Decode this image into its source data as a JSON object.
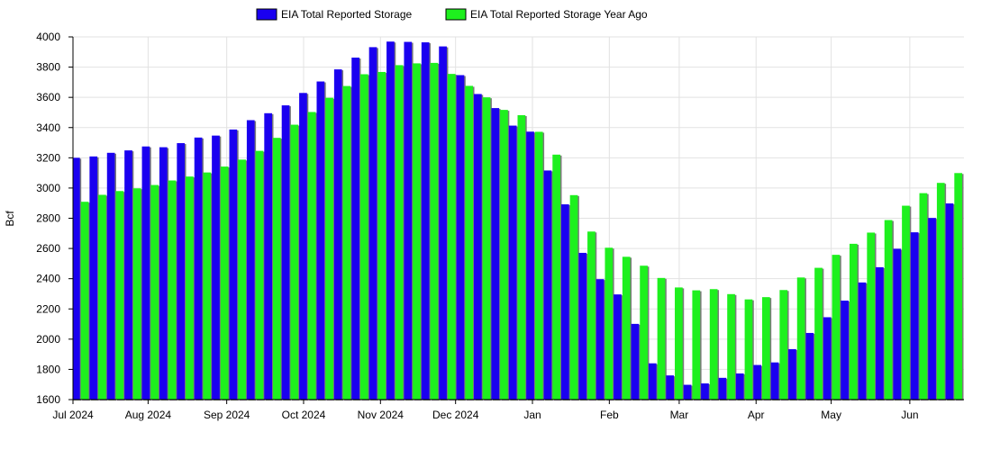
{
  "chart_data": {
    "type": "bar",
    "ylabel": "Bcf",
    "ylim": [
      1600,
      4000
    ],
    "yticks": [
      1600,
      1800,
      2000,
      2200,
      2400,
      2600,
      2800,
      3000,
      3200,
      3400,
      3600,
      3800,
      4000
    ],
    "grid": true,
    "legend": "top-center",
    "x_tick_labels": [
      "Jul 2024",
      "Aug 2024",
      "Sep 2024",
      "Oct 2024",
      "Nov 2024",
      "Dec 2024",
      "Jan",
      "Feb",
      "Mar",
      "Apr",
      "May",
      "Jun"
    ],
    "x_tick_weeks": [
      0,
      4.3,
      8.8,
      13.2,
      17.6,
      21.9,
      26.3,
      30.7,
      34.7,
      39.1,
      43.4,
      47.9
    ],
    "series": [
      {
        "name": "EIA Total Reported Storage",
        "color": "#1a00f0",
        "values": [
          3200,
          3209,
          3233,
          3249,
          3275,
          3270,
          3297,
          3334,
          3347,
          3387,
          3449,
          3495,
          3547,
          3629,
          3705,
          3785,
          3863,
          3932,
          3969,
          3967,
          3964,
          3937,
          3747,
          3622,
          3529,
          3413,
          3373,
          3116,
          2892,
          2571,
          2397,
          2296,
          2101,
          1840,
          1760,
          1698,
          1707,
          1744,
          1773,
          1829,
          1846,
          1934,
          2041,
          2145,
          2255,
          2375,
          2476,
          2598,
          2707,
          2802,
          2898
        ]
      },
      {
        "name": "EIA Total Reported Storage Year Ago",
        "color": "#1ef01e",
        "values": [
          2909,
          2955,
          2980,
          2998,
          3020,
          3050,
          3076,
          3103,
          3142,
          3188,
          3246,
          3332,
          3419,
          3503,
          3597,
          3675,
          3753,
          3768,
          3813,
          3825,
          3828,
          3755,
          3676,
          3600,
          3517,
          3482,
          3372,
          3221,
          2953,
          2712,
          2605,
          2545,
          2486,
          2405,
          2342,
          2323,
          2331,
          2298,
          2263,
          2278,
          2325,
          2408,
          2472,
          2558,
          2631,
          2705,
          2788,
          2883,
          2966,
          3034,
          3099
        ]
      }
    ]
  }
}
